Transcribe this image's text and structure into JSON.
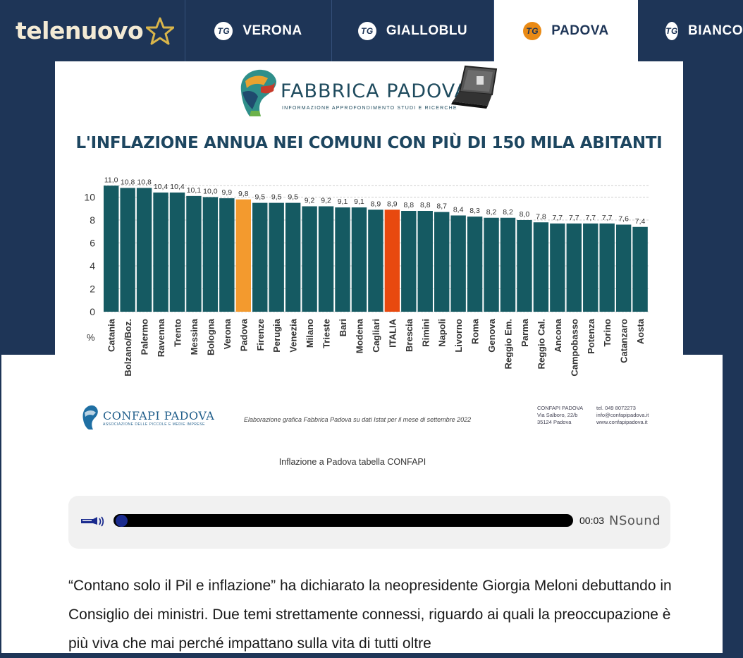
{
  "header": {
    "logo": "telenuovo",
    "tabs": [
      {
        "label": "VERONA",
        "badge": "TG",
        "active": false
      },
      {
        "label": "GIALLOBLU",
        "badge": "TG",
        "active": false
      },
      {
        "label": "PADOVA",
        "badge": "TG",
        "active": true
      },
      {
        "label": "BIANCO",
        "badge": "TG",
        "active": false
      }
    ]
  },
  "infographic": {
    "brand": "FABBRICA PADOVA",
    "brand_sub": "INFORMAZIONE APPROFONDIMENTO STUDI E RICERCHE",
    "footer_brand": "CONFAPI PADOVA",
    "footer_brand_sub": "ASSOCIAZIONE DELLE PICCOLE E MEDIE IMPRESE",
    "credit": "Elaborazione grafica Fabbrica Padova su dati Istat per il mese di settembre 2022",
    "contact_name": "CONFAPI PADOVA",
    "contact_street": "Via Salboro, 22/b",
    "contact_city": "35124 Padova",
    "contact_phone": "tel. 049 8072273",
    "contact_email": "info@confapipadova.it",
    "contact_web": "www.confapipadova.it"
  },
  "chart_data": {
    "type": "bar",
    "title": "L'INFLAZIONE ANNUA NEI COMUNI CON PIÙ DI 150 MILA ABITANTI",
    "ylabel": "%",
    "ylim": [
      0,
      11
    ],
    "yticks": [
      0,
      2,
      4,
      6,
      8,
      10
    ],
    "categories": [
      "Catania",
      "Bolzano/Boz.",
      "Palermo",
      "Ravenna",
      "Trento",
      "Messina",
      "Bologna",
      "Verona",
      "Padova",
      "Firenze",
      "Perugia",
      "Venezia",
      "Milano",
      "Trieste",
      "Bari",
      "Modena",
      "Cagliari",
      "ITALIA",
      "Brescia",
      "Rimini",
      "Napoli",
      "Livorno",
      "Roma",
      "Genova",
      "Reggio Em.",
      "Parma",
      "Reggio Cal.",
      "Ancona",
      "Campobasso",
      "Potenza",
      "Torino",
      "Catanzaro",
      "Aosta"
    ],
    "values": [
      11.0,
      10.8,
      10.8,
      10.4,
      10.4,
      10.1,
      10.0,
      9.9,
      9.8,
      9.5,
      9.5,
      9.5,
      9.2,
      9.2,
      9.1,
      9.1,
      8.9,
      8.9,
      8.8,
      8.8,
      8.7,
      8.4,
      8.3,
      8.2,
      8.2,
      8.0,
      7.8,
      7.7,
      7.7,
      7.7,
      7.7,
      7.6,
      7.4
    ],
    "labels": [
      "11,0",
      "10,8",
      "10,8",
      "10,4",
      "10,4",
      "10,1",
      "10,0",
      "9,9",
      "9,8",
      "9,5",
      "9,5",
      "9,5",
      "9,2",
      "9,2",
      "9,1",
      "9,1",
      "8,9",
      "8,9",
      "8,8",
      "8,8",
      "8,7",
      "8,4",
      "8,3",
      "8,2",
      "8,2",
      "8,0",
      "7,8",
      "7,7",
      "7,7",
      "7,7",
      "7,7",
      "7,6",
      "7,4"
    ],
    "highlights": {
      "Padova": "#f39a2e",
      "ITALIA": "#e8490f"
    },
    "bar_color": "#155a62",
    "grid": true
  },
  "caption": "Inflazione a Padova tabella CONFAPI",
  "player": {
    "time": "00:03",
    "brand": "NSound",
    "progress": 0.01
  },
  "body": "“Contano solo il Pil e inflazione” ha dichiarato la neopresidente Giorgia Meloni debuttando in Consiglio dei ministri. Due temi strettamente connessi, riguardo ai quali la preoccupazione è più viva che mai perché impattano sulla vita di tutti oltre"
}
